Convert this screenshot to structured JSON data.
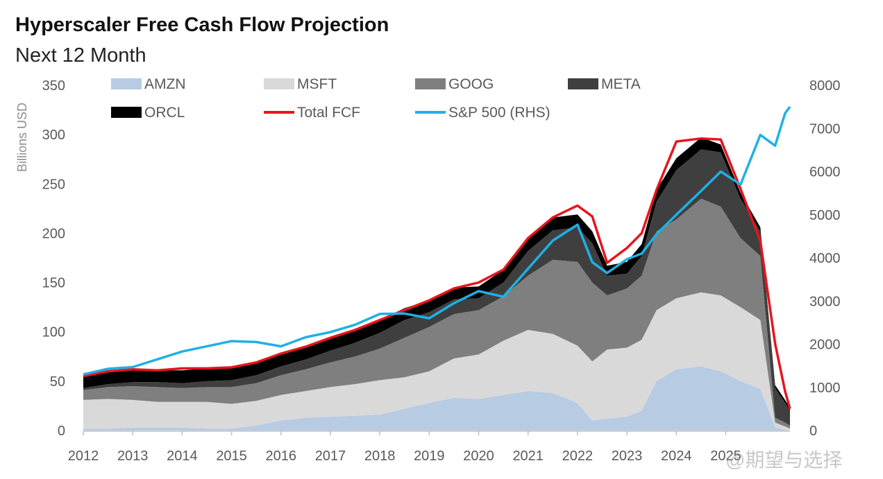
{
  "title": "Hyperscaler Free Cash Flow Projection",
  "subtitle": "Next 12 Month",
  "watermark": "@期望与选择",
  "colors": {
    "AMZN": "#b7cbe3",
    "MSFT": "#d9d9d9",
    "GOOG": "#7f7f7f",
    "META": "#3f3f3f",
    "ORCL": "#000000",
    "Total FCF": "#e8141b",
    "S&P 500 (RHS)": "#1fb0e6"
  },
  "chart_data": {
    "type": "area",
    "ylabel": "Billions USD",
    "ylim": [
      0,
      350
    ],
    "y_ticks": [
      0,
      50,
      100,
      150,
      200,
      250,
      300,
      350
    ],
    "y2lim": [
      0,
      8000
    ],
    "y2_ticks": [
      0,
      1000,
      2000,
      3000,
      4000,
      5000,
      6000,
      7000,
      8000
    ],
    "x_ticks": [
      "2012",
      "2013",
      "2014",
      "2015",
      "2016",
      "2017",
      "2018",
      "2019",
      "2020",
      "2021",
      "2022",
      "2023",
      "2024",
      "2025"
    ],
    "x": [
      2012.0,
      2012.5,
      2013.0,
      2013.5,
      2014.0,
      2014.5,
      2015.0,
      2015.5,
      2016.0,
      2016.5,
      2017.0,
      2017.5,
      2018.0,
      2018.5,
      2019.0,
      2019.5,
      2020.0,
      2020.5,
      2021.0,
      2021.5,
      2022.0,
      2022.3,
      2022.6,
      2023.0,
      2023.3,
      2023.6,
      2024.0,
      2024.5,
      2024.9,
      2025.3,
      2025.7,
      2026.0,
      2026.2,
      2026.3
    ],
    "legend": [
      "AMZN",
      "MSFT",
      "GOOG",
      "META",
      "ORCL",
      "Total FCF",
      "S&P 500 (RHS)"
    ],
    "legend_placement": "top",
    "series": [
      {
        "name": "AMZN",
        "type": "stacked-area",
        "axis": "left",
        "values": [
          2,
          2,
          3,
          3,
          3,
          2,
          2,
          5,
          10,
          13,
          14,
          15,
          16,
          22,
          28,
          33,
          32,
          36,
          40,
          38,
          28,
          10,
          12,
          14,
          20,
          50,
          62,
          65,
          60,
          50,
          42,
          3,
          1,
          0
        ]
      },
      {
        "name": "MSFT",
        "type": "stacked-area",
        "axis": "left",
        "values": [
          29,
          30,
          28,
          26,
          26,
          27,
          25,
          25,
          26,
          27,
          30,
          32,
          35,
          32,
          32,
          40,
          45,
          55,
          62,
          60,
          58,
          60,
          70,
          70,
          72,
          72,
          72,
          75,
          77,
          75,
          70,
          5,
          3,
          2
        ]
      },
      {
        "name": "GOOG",
        "type": "stacked-area",
        "axis": "left",
        "values": [
          10,
          12,
          14,
          15,
          14,
          15,
          17,
          18,
          20,
          22,
          25,
          28,
          32,
          40,
          45,
          45,
          45,
          45,
          55,
          75,
          85,
          80,
          55,
          60,
          65,
          80,
          80,
          95,
          90,
          70,
          65,
          5,
          4,
          3
        ]
      },
      {
        "name": "META",
        "type": "stacked-area",
        "axis": "left",
        "values": [
          2,
          3,
          4,
          5,
          5,
          6,
          7,
          8,
          9,
          10,
          12,
          14,
          16,
          18,
          15,
          15,
          12,
          14,
          25,
          30,
          35,
          40,
          20,
          15,
          20,
          30,
          50,
          50,
          55,
          40,
          25,
          30,
          20,
          15
        ]
      },
      {
        "name": "ORCL",
        "type": "stacked-area",
        "axis": "left",
        "values": [
          12,
          12,
          12,
          12,
          13,
          13,
          13,
          13,
          13,
          13,
          13,
          13,
          13,
          12,
          12,
          12,
          12,
          13,
          13,
          13,
          13,
          12,
          10,
          12,
          12,
          12,
          12,
          12,
          8,
          6,
          4,
          3,
          3,
          3
        ]
      },
      {
        "name": "Total FCF",
        "type": "line",
        "axis": "left",
        "values": [
          55,
          60,
          62,
          61,
          63,
          63,
          64,
          69,
          78,
          85,
          94,
          102,
          112,
          122,
          132,
          144,
          150,
          163,
          195,
          216,
          228,
          217,
          170,
          185,
          200,
          244,
          293,
          296,
          295,
          245,
          192,
          88,
          40,
          22
        ]
      },
      {
        "name": "S&P 500 (RHS)",
        "type": "line",
        "axis": "right",
        "values": [
          1300,
          1430,
          1470,
          1650,
          1830,
          1950,
          2070,
          2050,
          1950,
          2160,
          2280,
          2450,
          2700,
          2710,
          2600,
          2950,
          3230,
          3100,
          3750,
          4400,
          4770,
          3900,
          3650,
          3970,
          4100,
          4550,
          5000,
          5550,
          6000,
          5700,
          6850,
          6600,
          7350,
          7500
        ]
      }
    ]
  }
}
